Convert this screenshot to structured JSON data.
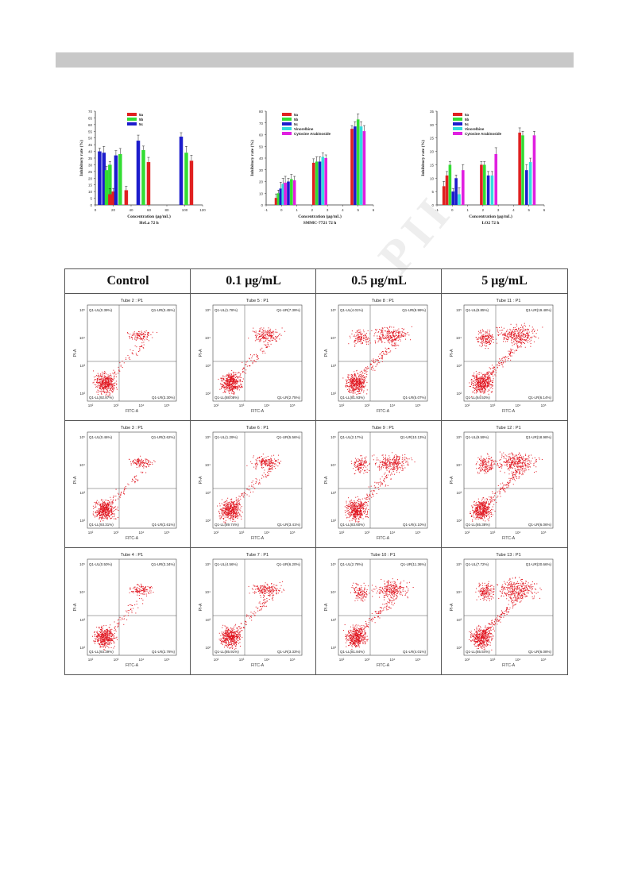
{
  "header": {
    "bar_color": "#c8c8c8"
  },
  "watermark": {
    "text": "PII"
  },
  "charts": [
    {
      "type": "bar",
      "legend": [
        {
          "name": "5a",
          "color": "#e02020"
        },
        {
          "name": "5b",
          "color": "#33dd33"
        },
        {
          "name": "5c",
          "color": "#1c1ccc"
        }
      ],
      "xlabel": "Concentration (μg/mL)",
      "caption": "HeLa 72 h",
      "ylabel": "Inhibitory rate (%)",
      "xticks": [
        "0",
        "20",
        "40",
        "60",
        "80",
        "100",
        "120"
      ],
      "yticks": [
        "0",
        "5",
        "10",
        "15",
        "20",
        "25",
        "30",
        "35",
        "40",
        "45",
        "50",
        "55",
        "60",
        "65",
        "70"
      ],
      "xlim": [
        -5,
        120
      ],
      "ylim": [
        0,
        70
      ],
      "bars": [
        {
          "x": 0,
          "value": 40,
          "color": "#1c1ccc"
        },
        {
          "x": 5,
          "value": 39,
          "color": "#1c1ccc"
        },
        {
          "x": 8,
          "value": 26,
          "color": "#33dd33"
        },
        {
          "x": 12,
          "value": 30,
          "color": "#33dd33"
        },
        {
          "x": 12,
          "value": 8,
          "color": "#e02020"
        },
        {
          "x": 16,
          "value": 10,
          "color": "#e02020"
        },
        {
          "x": 19,
          "value": 37,
          "color": "#1c1ccc"
        },
        {
          "x": 24,
          "value": 38,
          "color": "#33dd33"
        },
        {
          "x": 31,
          "value": 11,
          "color": "#e02020"
        },
        {
          "x": 45,
          "value": 48,
          "color": "#1c1ccc"
        },
        {
          "x": 51,
          "value": 41,
          "color": "#33dd33"
        },
        {
          "x": 57,
          "value": 32,
          "color": "#e02020"
        },
        {
          "x": 95,
          "value": 51,
          "color": "#1c1ccc"
        },
        {
          "x": 101,
          "value": 39,
          "color": "#33dd33"
        },
        {
          "x": 107,
          "value": 33,
          "color": "#e02020"
        }
      ]
    },
    {
      "type": "bar",
      "legend": [
        {
          "name": "5a",
          "color": "#e02020"
        },
        {
          "name": "5b",
          "color": "#33dd33"
        },
        {
          "name": "5c",
          "color": "#1c1ccc"
        },
        {
          "name": "Vinorelbine",
          "color": "#33dddd"
        },
        {
          "name": "Cytosine Arabinoside",
          "color": "#e020e0"
        }
      ],
      "xlabel": "Concentration (μg/mL)",
      "caption": "SMMC-7721 72 h",
      "ylabel": "Inhibitory rate (%)",
      "xticks": [
        "-1",
        "0",
        "1",
        "2",
        "3",
        "4",
        "5",
        "6"
      ],
      "yticks": [
        "0",
        "10",
        "20",
        "30",
        "40",
        "50",
        "60",
        "70",
        "80"
      ],
      "xlim": [
        -1,
        6
      ],
      "ylim": [
        0,
        80
      ],
      "bars": [
        {
          "x": -0.35,
          "value": 6,
          "color": "#e02020"
        },
        {
          "x": -0.2,
          "value": 10,
          "color": "#33dd33"
        },
        {
          "x": -0.05,
          "value": 14,
          "color": "#1c1ccc"
        },
        {
          "x": 0.1,
          "value": 18,
          "color": "#33dddd"
        },
        {
          "x": 0.25,
          "value": 19,
          "color": "#e020e0"
        },
        {
          "x": 0.45,
          "value": 20,
          "color": "#1c1ccc"
        },
        {
          "x": 0.65,
          "value": 22,
          "color": "#33dd33"
        },
        {
          "x": 0.85,
          "value": 21,
          "color": "#e020e0"
        },
        {
          "x": 2.1,
          "value": 36,
          "color": "#e02020"
        },
        {
          "x": 2.3,
          "value": 37,
          "color": "#33dd33"
        },
        {
          "x": 2.5,
          "value": 37,
          "color": "#1c1ccc"
        },
        {
          "x": 2.7,
          "value": 41,
          "color": "#33dddd"
        },
        {
          "x": 2.9,
          "value": 40,
          "color": "#e020e0"
        },
        {
          "x": 4.6,
          "value": 65,
          "color": "#e02020"
        },
        {
          "x": 4.8,
          "value": 67,
          "color": "#1c1ccc"
        },
        {
          "x": 5.0,
          "value": 73,
          "color": "#33dd33"
        },
        {
          "x": 5.2,
          "value": 67,
          "color": "#33dddd"
        },
        {
          "x": 5.4,
          "value": 63,
          "color": "#e020e0"
        }
      ]
    },
    {
      "type": "bar",
      "legend": [
        {
          "name": "5a",
          "color": "#e02020"
        },
        {
          "name": "5b",
          "color": "#33dd33"
        },
        {
          "name": "5c",
          "color": "#1c1ccc"
        },
        {
          "name": "Vinorelbine",
          "color": "#33dddd"
        },
        {
          "name": "Cytosine Arabinoside",
          "color": "#e020e0"
        }
      ],
      "xlabel": "Concentration (μg/mL)",
      "caption": "LO2  72 h",
      "ylabel": "Inhibitory rate (%)",
      "xticks": [
        "-1",
        "0",
        "1",
        "2",
        "3",
        "4",
        "5",
        "6"
      ],
      "yticks": [
        "0",
        "5",
        "10",
        "15",
        "20",
        "25",
        "30",
        "35"
      ],
      "xlim": [
        -1,
        6
      ],
      "ylim": [
        0,
        35
      ],
      "bars": [
        {
          "x": -0.55,
          "value": 7,
          "color": "#e02020"
        },
        {
          "x": -0.35,
          "value": 11,
          "color": "#e02020"
        },
        {
          "x": -0.15,
          "value": 15,
          "color": "#33dd33"
        },
        {
          "x": 0.05,
          "value": 5,
          "color": "#1c1ccc"
        },
        {
          "x": 0.25,
          "value": 10,
          "color": "#1c1ccc"
        },
        {
          "x": 0.45,
          "value": 4,
          "color": "#33dddd"
        },
        {
          "x": 0.7,
          "value": 13,
          "color": "#e020e0"
        },
        {
          "x": 1.9,
          "value": 15,
          "color": "#e02020"
        },
        {
          "x": 2.1,
          "value": 15,
          "color": "#33dd33"
        },
        {
          "x": 2.35,
          "value": 11,
          "color": "#1c1ccc"
        },
        {
          "x": 2.6,
          "value": 11,
          "color": "#33dddd"
        },
        {
          "x": 2.85,
          "value": 19,
          "color": "#e020e0"
        },
        {
          "x": 4.4,
          "value": 27,
          "color": "#e02020"
        },
        {
          "x": 4.6,
          "value": 26,
          "color": "#33dd33"
        },
        {
          "x": 4.85,
          "value": 13,
          "color": "#1c1ccc"
        },
        {
          "x": 5.1,
          "value": 16,
          "color": "#33dddd"
        },
        {
          "x": 5.35,
          "value": 26,
          "color": "#e020e0"
        }
      ]
    }
  ],
  "flow_headers": [
    "Control",
    "0.1 μg/mL",
    "0.5 μg/mL",
    "5 μg/mL"
  ],
  "flow_axis": {
    "x_label": "FITC-A",
    "y_label": "PI-A",
    "ticks": [
      "10²",
      "10³",
      "10⁴",
      "10⁵"
    ]
  },
  "flow_cells": [
    {
      "tube": "Tube 2 : P1",
      "ul": "Q1-UL(0.39%)",
      "ur": "Q1-UR(3.45%)",
      "ll": "Q1-LL(92.87%)",
      "lr": "Q1-LR(3.30%)",
      "density": 1
    },
    {
      "tube": "Tube 5 : P1",
      "ul": "Q1-UL(1.78%)",
      "ur": "Q1-UR(7.39%)",
      "ll": "Q1-LL(88.08%)",
      "lr": "Q1-LR(2.75%)",
      "density": 2
    },
    {
      "tube": "Tube 8 : P1",
      "ul": "Q1-UL(4.01%)",
      "ur": "Q1-UR(8.99%)",
      "ll": "Q1-LL(81.93%)",
      "lr": "Q1-LR(5.07%)",
      "density": 3
    },
    {
      "tube": "Tube 11 : P1",
      "ul": "Q1-UL(9.85%)",
      "ur": "Q1-UR(19.48%)",
      "ll": "Q1-LL(64.53%)",
      "lr": "Q1-LR(6.14%)",
      "density": 4
    },
    {
      "tube": "Tube 3 : P1",
      "ul": "Q1-UL(0.46%)",
      "ur": "Q1-UR(3.62%)",
      "ll": "Q1-LL(93.31%)",
      "lr": "Q1-LR(2.61%)",
      "density": 1
    },
    {
      "tube": "Tube 6 : P1",
      "ul": "Q1-UL(1.29%)",
      "ur": "Q1-UR(5.56%)",
      "ll": "Q1-LL(89.74%)",
      "lr": "Q1-LR(3.41%)",
      "density": 2
    },
    {
      "tube": "Tube 9 : P1",
      "ul": "Q1-UL(2.17%)",
      "ur": "Q1-UR(10.13%)",
      "ll": "Q1-LL(83.60%)",
      "lr": "Q1-LR(4.10%)",
      "density": 3
    },
    {
      "tube": "Tube 12 : P1",
      "ul": "Q1-UL(9.59%)",
      "ur": "Q1-UR(18.98%)",
      "ll": "Q1-LL(65.38%)",
      "lr": "Q1-LR(6.06%)",
      "density": 4
    },
    {
      "tube": "Tube 4 : P1",
      "ul": "Q1-UL(0.50%)",
      "ur": "Q1-UR(3.34%)",
      "ll": "Q1-LL(93.39%)",
      "lr": "Q1-LR(2.78%)",
      "density": 1
    },
    {
      "tube": "Tube 7 : P1",
      "ul": "Q1-UL(4.56%)",
      "ur": "Q1-UR(6.20%)",
      "ll": "Q1-LL(85.91%)",
      "lr": "Q1-LR(3.33%)",
      "density": 2
    },
    {
      "tube": "Tube 10 : P1",
      "ul": "Q1-UL(2.78%)",
      "ur": "Q1-UR(11.36%)",
      "ll": "Q1-LL(81.84%)",
      "lr": "Q1-LR(4.01%)",
      "density": 3
    },
    {
      "tube": "Tube 13 : P1",
      "ul": "Q1-UL(7.72%)",
      "ur": "Q1-UR(20.66%)",
      "ll": "Q1-LL(65.54%)",
      "lr": "Q1-LR(6.08%)",
      "density": 4
    }
  ],
  "chart_data": [
    {
      "type": "bar",
      "title": "",
      "caption": "HeLa 72 h",
      "xlabel": "Concentration (μg/mL)",
      "ylabel": "Inhibitory rate (%)",
      "ylim": [
        0,
        70
      ],
      "series": [
        {
          "name": "5a",
          "points": [
            [
              12,
              8
            ],
            [
              16,
              10
            ],
            [
              31,
              11
            ],
            [
              57,
              32
            ],
            [
              107,
              33
            ]
          ]
        },
        {
          "name": "5b",
          "points": [
            [
              8,
              26
            ],
            [
              12,
              30
            ],
            [
              24,
              38
            ],
            [
              51,
              41
            ],
            [
              101,
              39
            ]
          ]
        },
        {
          "name": "5c",
          "points": [
            [
              0,
              40
            ],
            [
              5,
              39
            ],
            [
              19,
              37
            ],
            [
              45,
              48
            ],
            [
              95,
              51
            ]
          ]
        }
      ]
    },
    {
      "type": "bar",
      "title": "",
      "caption": "SMMC-7721 72 h",
      "xlabel": "Concentration (μg/mL)",
      "ylabel": "Inhibitory rate (%)",
      "ylim": [
        0,
        80
      ],
      "series": [
        {
          "name": "5a",
          "points": [
            [
              -0.35,
              6
            ],
            [
              2.1,
              36
            ],
            [
              4.6,
              65
            ]
          ]
        },
        {
          "name": "5b",
          "points": [
            [
              -0.2,
              10
            ],
            [
              0.65,
              22
            ],
            [
              2.3,
              37
            ],
            [
              5.0,
              73
            ]
          ]
        },
        {
          "name": "5c",
          "points": [
            [
              -0.05,
              14
            ],
            [
              0.45,
              20
            ],
            [
              2.5,
              37
            ],
            [
              4.8,
              67
            ]
          ]
        },
        {
          "name": "Vinorelbine",
          "points": [
            [
              0.1,
              18
            ],
            [
              2.7,
              41
            ],
            [
              5.2,
              67
            ]
          ]
        },
        {
          "name": "Cytosine Arabinoside",
          "points": [
            [
              0.25,
              19
            ],
            [
              0.85,
              21
            ],
            [
              2.9,
              40
            ],
            [
              5.4,
              63
            ]
          ]
        }
      ]
    },
    {
      "type": "bar",
      "title": "",
      "caption": "LO2  72 h",
      "xlabel": "Concentration (μg/mL)",
      "ylabel": "Inhibitory rate (%)",
      "ylim": [
        0,
        35
      ],
      "series": [
        {
          "name": "5a",
          "points": [
            [
              -0.55,
              7
            ],
            [
              -0.35,
              11
            ],
            [
              1.9,
              15
            ],
            [
              4.4,
              27
            ]
          ]
        },
        {
          "name": "5b",
          "points": [
            [
              -0.15,
              15
            ],
            [
              2.1,
              15
            ],
            [
              4.6,
              26
            ]
          ]
        },
        {
          "name": "5c",
          "points": [
            [
              0.05,
              5
            ],
            [
              0.25,
              10
            ],
            [
              2.35,
              11
            ],
            [
              4.85,
              13
            ]
          ]
        },
        {
          "name": "Vinorelbine",
          "points": [
            [
              0.45,
              4
            ],
            [
              2.6,
              11
            ],
            [
              5.1,
              16
            ]
          ]
        },
        {
          "name": "Cytosine Arabinoside",
          "points": [
            [
              0.7,
              13
            ],
            [
              2.85,
              19
            ],
            [
              5.35,
              26
            ]
          ]
        }
      ]
    }
  ]
}
